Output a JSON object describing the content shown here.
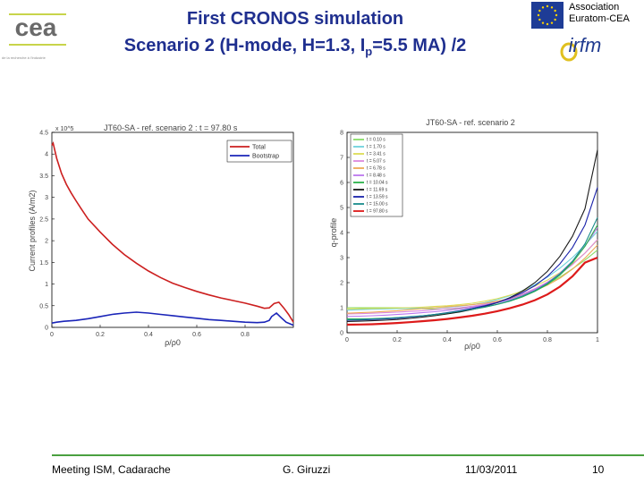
{
  "header": {
    "title_line1": "First CRONOS simulation",
    "title_line2_a": "Scenario 2 (H-mode, H=1.3, I",
    "title_line2_sub": "p",
    "title_line2_b": "=5.5 MA) /2",
    "association_line1": "Association",
    "association_line2": "Euratom-CEA",
    "cea_logo_text": "cea",
    "cea_tagline": "de la recherche à l'industrie",
    "irfm_logo_text": "irfm"
  },
  "footer": {
    "meeting": "Meeting ISM, Cadarache",
    "author": "G. Giruzzi",
    "date": "11/03/2011",
    "page": "10"
  },
  "colors": {
    "title": "#1f2f8f",
    "footer_line": "#4aa040",
    "eu_blue": "#1e3c96",
    "eu_star": "#ffd200"
  },
  "chart_data": [
    {
      "type": "line",
      "title": "JT60-SA - ref. scenario 2 : t = 97.80 s",
      "xlabel": "ρ/ρ0",
      "ylabel": "Current profiles (A/m2)",
      "y_multiplier": "x 10^5",
      "xlim": [
        0,
        1
      ],
      "ylim": [
        0,
        4.5
      ],
      "xticks": [
        "0",
        "0.2",
        "0.4",
        "0.6",
        "0.8"
      ],
      "yticks": [
        "0",
        "0.5",
        "1",
        "1.5",
        "2",
        "2.5",
        "3",
        "3.5",
        "4",
        "4.5"
      ],
      "legend": "top-right",
      "grid": false,
      "series": [
        {
          "name": "Total",
          "color": "#cc1f1f",
          "x": [
            0,
            0.005,
            0.02,
            0.04,
            0.06,
            0.08,
            0.1,
            0.12,
            0.15,
            0.2,
            0.25,
            0.3,
            0.35,
            0.4,
            0.45,
            0.5,
            0.55,
            0.6,
            0.65,
            0.7,
            0.75,
            0.8,
            0.85,
            0.88,
            0.9,
            0.92,
            0.94,
            0.96,
            0.98,
            1.0
          ],
          "y": [
            4.2,
            4.25,
            3.9,
            3.55,
            3.3,
            3.1,
            2.92,
            2.75,
            2.5,
            2.2,
            1.92,
            1.68,
            1.48,
            1.3,
            1.15,
            1.02,
            0.92,
            0.83,
            0.75,
            0.68,
            0.62,
            0.56,
            0.49,
            0.44,
            0.45,
            0.55,
            0.58,
            0.45,
            0.3,
            0.12
          ]
        },
        {
          "name": "Bootstrap",
          "color": "#1a24b8",
          "x": [
            0,
            0.02,
            0.05,
            0.1,
            0.15,
            0.2,
            0.25,
            0.3,
            0.35,
            0.4,
            0.45,
            0.5,
            0.55,
            0.6,
            0.65,
            0.7,
            0.75,
            0.8,
            0.85,
            0.88,
            0.9,
            0.91,
            0.93,
            0.95,
            0.97,
            1.0
          ],
          "y": [
            0.1,
            0.12,
            0.14,
            0.16,
            0.2,
            0.25,
            0.3,
            0.33,
            0.35,
            0.33,
            0.3,
            0.27,
            0.24,
            0.21,
            0.18,
            0.16,
            0.14,
            0.12,
            0.11,
            0.12,
            0.16,
            0.25,
            0.33,
            0.22,
            0.12,
            0.05
          ]
        }
      ]
    },
    {
      "type": "line",
      "title": "JT60-SA - ref. scenario 2",
      "xlabel": "ρ/ρ0",
      "ylabel": "q-profile",
      "xlim": [
        0,
        1
      ],
      "ylim": [
        0,
        8
      ],
      "xticks": [
        "0",
        "0.2",
        "0.4",
        "0.6",
        "0.8",
        "1"
      ],
      "yticks": [
        "0",
        "1",
        "2",
        "3",
        "4",
        "5",
        "6",
        "7",
        "8"
      ],
      "legend": "top-left",
      "grid": false,
      "x": [
        0,
        0.05,
        0.1,
        0.15,
        0.2,
        0.25,
        0.3,
        0.35,
        0.4,
        0.45,
        0.5,
        0.55,
        0.6,
        0.65,
        0.7,
        0.75,
        0.8,
        0.85,
        0.9,
        0.95,
        1.0
      ],
      "series": [
        {
          "name": "t = 0.10 s",
          "color": "#88dd66",
          "y": [
            1.0,
            1.0,
            1.0,
            1.0,
            1.0,
            0.98,
            0.96,
            0.95,
            0.95,
            0.98,
            1.02,
            1.1,
            1.2,
            1.35,
            1.52,
            1.72,
            1.95,
            2.22,
            2.55,
            2.9,
            3.3
          ]
        },
        {
          "name": "t = 1.70 s",
          "color": "#6fd2dd",
          "y": [
            0.9,
            0.92,
            0.94,
            0.95,
            0.96,
            0.97,
            0.98,
            1.0,
            1.02,
            1.06,
            1.12,
            1.2,
            1.32,
            1.48,
            1.68,
            1.92,
            2.22,
            2.58,
            3.0,
            3.5,
            4.05
          ]
        },
        {
          "name": "t = 3.41 s",
          "color": "#dddd55",
          "y": [
            0.95,
            0.96,
            0.97,
            0.98,
            0.99,
            1.0,
            1.02,
            1.05,
            1.08,
            1.12,
            1.18,
            1.26,
            1.36,
            1.5,
            1.66,
            1.86,
            2.1,
            2.4,
            2.76,
            3.18,
            3.7
          ]
        },
        {
          "name": "t = 5.07 s",
          "color": "#dd88dd",
          "y": [
            0.75,
            0.76,
            0.78,
            0.8,
            0.82,
            0.85,
            0.88,
            0.92,
            0.96,
            1.0,
            1.06,
            1.14,
            1.24,
            1.38,
            1.55,
            1.76,
            2.02,
            2.34,
            2.72,
            3.18,
            3.72
          ]
        },
        {
          "name": "t = 6.78 s",
          "color": "#eeaa55",
          "y": [
            0.78,
            0.8,
            0.82,
            0.85,
            0.88,
            0.92,
            0.96,
            1.0,
            1.04,
            1.08,
            1.12,
            1.18,
            1.26,
            1.36,
            1.5,
            1.68,
            1.9,
            2.18,
            2.54,
            2.98,
            3.5
          ]
        },
        {
          "name": "t = 8.48 s",
          "color": "#bb77ee",
          "y": [
            0.65,
            0.66,
            0.68,
            0.7,
            0.73,
            0.76,
            0.8,
            0.84,
            0.89,
            0.95,
            1.02,
            1.1,
            1.2,
            1.33,
            1.5,
            1.72,
            2.0,
            2.38,
            2.86,
            3.45,
            4.2
          ]
        },
        {
          "name": "t = 10.04 s",
          "color": "#2bb24a",
          "y": [
            0.55,
            0.55,
            0.56,
            0.58,
            0.6,
            0.63,
            0.67,
            0.72,
            0.78,
            0.85,
            0.93,
            1.02,
            1.13,
            1.26,
            1.43,
            1.65,
            1.93,
            2.3,
            2.8,
            3.45,
            4.3
          ]
        },
        {
          "name": "t = 11.69 s",
          "color": "#1a1a1a",
          "y": [
            0.45,
            0.46,
            0.48,
            0.5,
            0.53,
            0.57,
            0.62,
            0.68,
            0.75,
            0.83,
            0.93,
            1.05,
            1.2,
            1.4,
            1.66,
            2.0,
            2.45,
            3.05,
            3.85,
            4.95,
            7.3
          ]
        },
        {
          "name": "t = 13.59 s",
          "color": "#1a22aa",
          "y": [
            0.5,
            0.51,
            0.53,
            0.55,
            0.58,
            0.62,
            0.67,
            0.73,
            0.8,
            0.88,
            0.97,
            1.08,
            1.21,
            1.38,
            1.6,
            1.88,
            2.25,
            2.75,
            3.4,
            4.3,
            5.8
          ]
        },
        {
          "name": "t = 15.00 s",
          "color": "#1a8c8c",
          "y": [
            0.52,
            0.53,
            0.55,
            0.57,
            0.6,
            0.64,
            0.68,
            0.73,
            0.79,
            0.86,
            0.94,
            1.03,
            1.14,
            1.28,
            1.46,
            1.68,
            1.97,
            2.35,
            2.85,
            3.55,
            4.6
          ]
        },
        {
          "name": "t = 97.80 s",
          "color": "#dd1a1a",
          "y": [
            0.32,
            0.33,
            0.34,
            0.36,
            0.39,
            0.42,
            0.46,
            0.5,
            0.55,
            0.61,
            0.68,
            0.76,
            0.86,
            0.98,
            1.12,
            1.3,
            1.53,
            1.84,
            2.25,
            2.8,
            3.0
          ]
        }
      ]
    }
  ]
}
